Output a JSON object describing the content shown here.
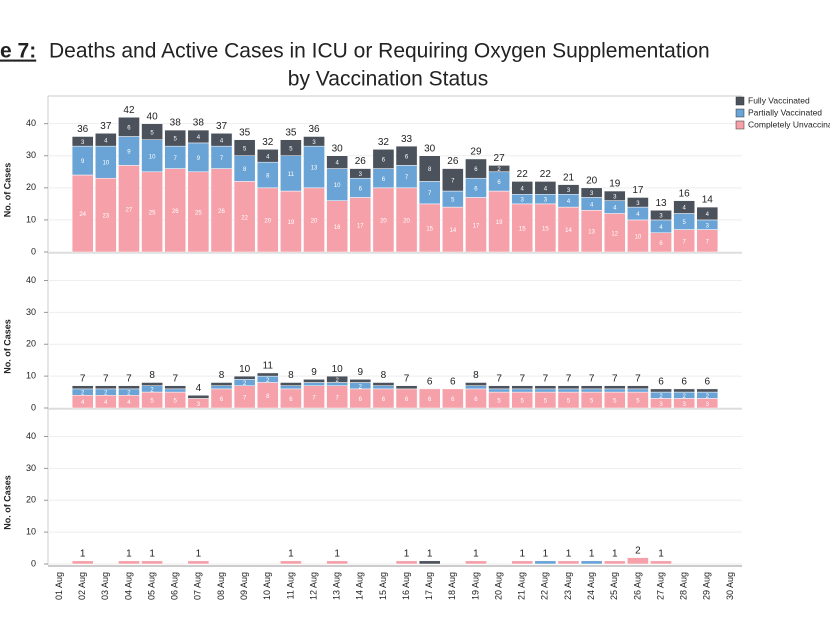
{
  "chart_data": [
    {
      "type": "bar",
      "stacked": true,
      "title_prefix": "e 7:",
      "title": "Deaths and Active Cases in ICU or Requiring Oxygen Supplementation",
      "subtitle": "by Vaccination Status",
      "ylabel": "No. of Cases",
      "ylim": [
        0,
        48
      ],
      "yticks": [
        0,
        10,
        20,
        30,
        40
      ],
      "grid": true,
      "segment_labels": true,
      "legend": "top-right",
      "series": [
        {
          "name": "Completely Unvaccinated",
          "color": "#f6a1aa",
          "values": [
            null,
            24,
            23,
            27,
            25,
            26,
            25,
            26,
            22,
            20,
            19,
            20,
            16,
            17,
            20,
            20,
            15,
            14,
            17,
            19,
            15,
            15,
            14,
            13,
            12,
            10,
            6,
            7,
            7,
            null
          ]
        },
        {
          "name": "Partially Vaccinated",
          "color": "#6aa3d5",
          "values": [
            null,
            9,
            10,
            9,
            10,
            7,
            9,
            7,
            8,
            8,
            11,
            13,
            10,
            6,
            6,
            7,
            7,
            5,
            6,
            6,
            3,
            3,
            4,
            4,
            4,
            4,
            4,
            5,
            3,
            null
          ]
        },
        {
          "name": "Fully Vaccinated",
          "color": "#4b525c",
          "values": [
            null,
            3,
            4,
            6,
            5,
            5,
            4,
            4,
            5,
            4,
            5,
            3,
            4,
            3,
            6,
            6,
            8,
            7,
            6,
            2,
            4,
            4,
            3,
            3,
            3,
            3,
            3,
            4,
            4,
            null
          ]
        }
      ],
      "totals": [
        null,
        36,
        37,
        42,
        40,
        38,
        38,
        37,
        35,
        32,
        35,
        36,
        30,
        26,
        32,
        33,
        30,
        26,
        29,
        27,
        22,
        22,
        21,
        20,
        19,
        17,
        13,
        16,
        14,
        null
      ]
    },
    {
      "type": "bar",
      "stacked": true,
      "ylabel": "No. of Cases",
      "ylim": [
        0,
        48
      ],
      "yticks": [
        0,
        10,
        20,
        30,
        40
      ],
      "grid": true,
      "segment_labels": true,
      "series": [
        {
          "values": [
            null,
            4,
            4,
            4,
            5,
            5,
            3,
            6,
            7,
            8,
            6,
            7,
            7,
            6,
            6,
            6,
            6,
            6,
            6,
            5,
            5,
            5,
            5,
            5,
            5,
            5,
            3,
            3,
            3,
            null
          ]
        },
        {
          "values": [
            null,
            2,
            2,
            2,
            2,
            1,
            0,
            1,
            2,
            2,
            1,
            1,
            1,
            2,
            1,
            0,
            0,
            0,
            1,
            1,
            1,
            1,
            1,
            1,
            1,
            1,
            2,
            2,
            2,
            null
          ]
        },
        {
          "values": [
            null,
            1,
            1,
            1,
            1,
            1,
            1,
            1,
            1,
            1,
            1,
            1,
            2,
            1,
            1,
            1,
            0,
            0,
            1,
            1,
            1,
            1,
            1,
            1,
            1,
            1,
            1,
            1,
            1,
            null
          ]
        }
      ],
      "totals": [
        null,
        7,
        7,
        7,
        8,
        7,
        4,
        8,
        10,
        11,
        8,
        9,
        10,
        9,
        8,
        7,
        6,
        6,
        8,
        7,
        7,
        7,
        7,
        7,
        7,
        7,
        6,
        6,
        6,
        null
      ]
    },
    {
      "type": "bar",
      "stacked": true,
      "ylabel": "No. of Cases",
      "ylim": [
        0,
        48
      ],
      "yticks": [
        0,
        10,
        20,
        30,
        40
      ],
      "grid": true,
      "segment_labels": false,
      "categories": [
        "01 Aug",
        "02 Aug",
        "03 Aug",
        "04 Aug",
        "05 Aug",
        "06 Aug",
        "07 Aug",
        "08 Aug",
        "09 Aug",
        "10 Aug",
        "11 Aug",
        "12 Aug",
        "13 Aug",
        "14 Aug",
        "15 Aug",
        "16 Aug",
        "17 Aug",
        "18 Aug",
        "19 Aug",
        "20 Aug",
        "21 Aug",
        "22 Aug",
        "23 Aug",
        "24 Aug",
        "25 Aug",
        "26 Aug",
        "27 Aug",
        "28 Aug",
        "29 Aug",
        "30 Aug"
      ],
      "series": [
        {
          "values": [
            0,
            1,
            0,
            1,
            1,
            0,
            1,
            0,
            0,
            0,
            1,
            0,
            1,
            0,
            0,
            1,
            0,
            0,
            1,
            0,
            1,
            0,
            1,
            0,
            1,
            2,
            1,
            0,
            0,
            0
          ]
        },
        {
          "values": [
            0,
            0,
            0,
            0,
            0,
            0,
            0,
            0,
            0,
            0,
            0,
            0,
            0,
            0,
            0,
            0,
            0,
            0,
            0,
            0,
            0,
            1,
            0,
            1,
            0,
            0,
            0,
            0,
            0,
            0
          ]
        },
        {
          "values": [
            0,
            0,
            0,
            0,
            0,
            0,
            0,
            0,
            0,
            0,
            0,
            0,
            0,
            0,
            0,
            0,
            1,
            0,
            0,
            0,
            0,
            0,
            0,
            0,
            0,
            0,
            0,
            0,
            0,
            0
          ]
        }
      ],
      "totals": [
        null,
        1,
        null,
        1,
        1,
        null,
        1,
        null,
        null,
        null,
        1,
        null,
        1,
        null,
        null,
        1,
        1,
        null,
        1,
        null,
        1,
        1,
        1,
        1,
        1,
        2,
        1,
        null,
        null,
        null
      ]
    }
  ]
}
